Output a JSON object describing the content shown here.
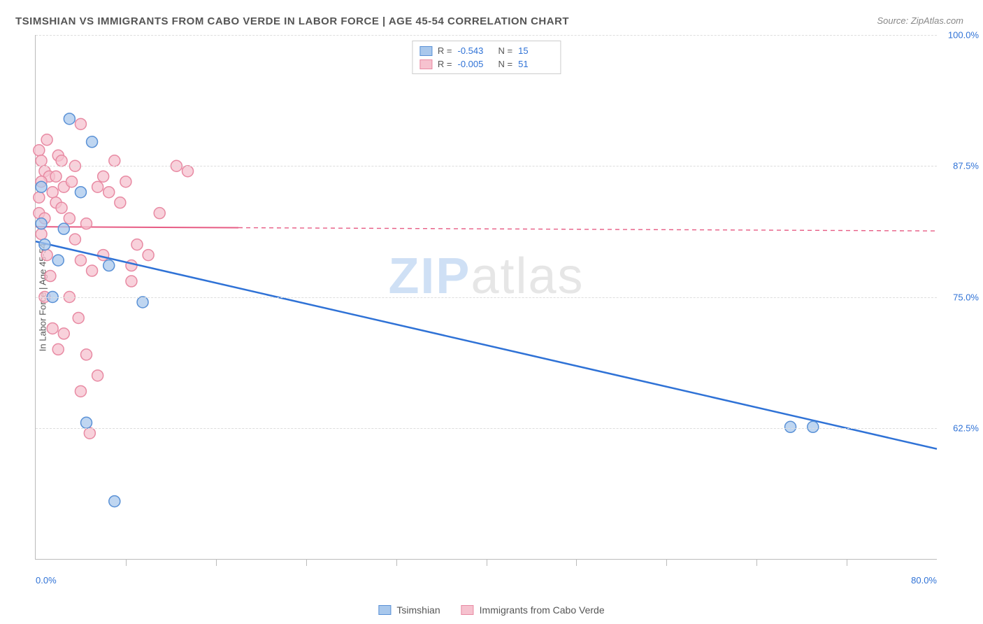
{
  "title": "TSIMSHIAN VS IMMIGRANTS FROM CABO VERDE IN LABOR FORCE | AGE 45-54 CORRELATION CHART",
  "source": "Source: ZipAtlas.com",
  "watermark_zip": "ZIP",
  "watermark_atlas": "atlas",
  "chart": {
    "type": "scatter",
    "xlim": [
      0,
      80
    ],
    "ylim": [
      50,
      100
    ],
    "x_ticks": [
      0,
      80
    ],
    "x_tick_labels": [
      "0.0%",
      "80.0%"
    ],
    "y_ticks": [
      62.5,
      75.0,
      87.5,
      100.0
    ],
    "y_tick_labels": [
      "62.5%",
      "75.0%",
      "87.5%",
      "100.0%"
    ],
    "x_minor_ticks": [
      8,
      16,
      24,
      32,
      40,
      48,
      56,
      64,
      72
    ],
    "y_axis_title": "In Labor Force | Age 45-54",
    "background_color": "#ffffff",
    "grid_color": "#dddddd",
    "axis_color": "#bbbbbb",
    "tick_label_color": "#2f72d6",
    "marker_radius": 8,
    "marker_stroke_width": 1.5,
    "series": [
      {
        "id": "tsimshian",
        "label": "Tsimshian",
        "fill": "#a9c8ec",
        "stroke": "#5a91d6",
        "line_color": "#2f72d6",
        "R": "-0.543",
        "N": "15",
        "points": [
          [
            0.5,
            85.5
          ],
          [
            3.0,
            92.0
          ],
          [
            5.0,
            89.8
          ],
          [
            0.8,
            80.0
          ],
          [
            2.0,
            78.5
          ],
          [
            6.5,
            78.0
          ],
          [
            1.5,
            75.0
          ],
          [
            9.5,
            74.5
          ],
          [
            4.5,
            63.0
          ],
          [
            7.0,
            55.5
          ],
          [
            0.5,
            82.0
          ],
          [
            67.0,
            62.6
          ],
          [
            69.0,
            62.6
          ],
          [
            2.5,
            81.5
          ],
          [
            4.0,
            85.0
          ]
        ],
        "regression": {
          "x1": 0,
          "y1": 80.3,
          "x2": 80,
          "y2": 60.5,
          "solid_until_x": 80,
          "width": 2.5
        }
      },
      {
        "id": "cabo_verde",
        "label": "Immigrants from Cabo Verde",
        "fill": "#f6c2cf",
        "stroke": "#e88aa3",
        "line_color": "#e75d85",
        "R": "-0.005",
        "N": "51",
        "points": [
          [
            0.3,
            89.0
          ],
          [
            0.5,
            88.0
          ],
          [
            0.8,
            87.0
          ],
          [
            1.0,
            90.0
          ],
          [
            1.2,
            86.5
          ],
          [
            1.5,
            85.0
          ],
          [
            1.8,
            84.0
          ],
          [
            2.0,
            88.5
          ],
          [
            2.3,
            83.5
          ],
          [
            2.5,
            85.5
          ],
          [
            3.0,
            82.5
          ],
          [
            3.2,
            86.0
          ],
          [
            3.5,
            80.5
          ],
          [
            4.0,
            78.5
          ],
          [
            4.5,
            82.0
          ],
          [
            5.0,
            77.5
          ],
          [
            5.5,
            85.5
          ],
          [
            6.0,
            79.0
          ],
          [
            6.5,
            85.0
          ],
          [
            7.0,
            88.0
          ],
          [
            7.5,
            84.0
          ],
          [
            8.0,
            86.0
          ],
          [
            8.5,
            76.5
          ],
          [
            9.0,
            80.0
          ],
          [
            10.0,
            79.0
          ],
          [
            11.0,
            83.0
          ],
          [
            12.5,
            87.5
          ],
          [
            13.5,
            87.0
          ],
          [
            3.0,
            75.0
          ],
          [
            3.8,
            73.0
          ],
          [
            2.5,
            71.5
          ],
          [
            4.5,
            69.5
          ],
          [
            5.5,
            67.5
          ],
          [
            4.0,
            66.0
          ],
          [
            4.8,
            62.0
          ],
          [
            0.3,
            83.0
          ],
          [
            0.5,
            81.0
          ],
          [
            1.0,
            79.0
          ],
          [
            1.3,
            77.0
          ],
          [
            0.8,
            75.0
          ],
          [
            1.5,
            72.0
          ],
          [
            2.0,
            70.0
          ],
          [
            0.5,
            86.0
          ],
          [
            1.8,
            86.5
          ],
          [
            2.3,
            88.0
          ],
          [
            3.5,
            87.5
          ],
          [
            0.3,
            84.5
          ],
          [
            0.8,
            82.5
          ],
          [
            4.0,
            91.5
          ],
          [
            6.0,
            86.5
          ],
          [
            8.5,
            78.0
          ]
        ],
        "regression": {
          "x1": 0,
          "y1": 81.7,
          "x2": 80,
          "y2": 81.3,
          "solid_until_x": 18,
          "width": 2
        }
      }
    ],
    "top_legend": {
      "R_label": "R =",
      "N_label": "N ="
    },
    "bottom_legend_order": [
      "tsimshian",
      "cabo_verde"
    ]
  }
}
